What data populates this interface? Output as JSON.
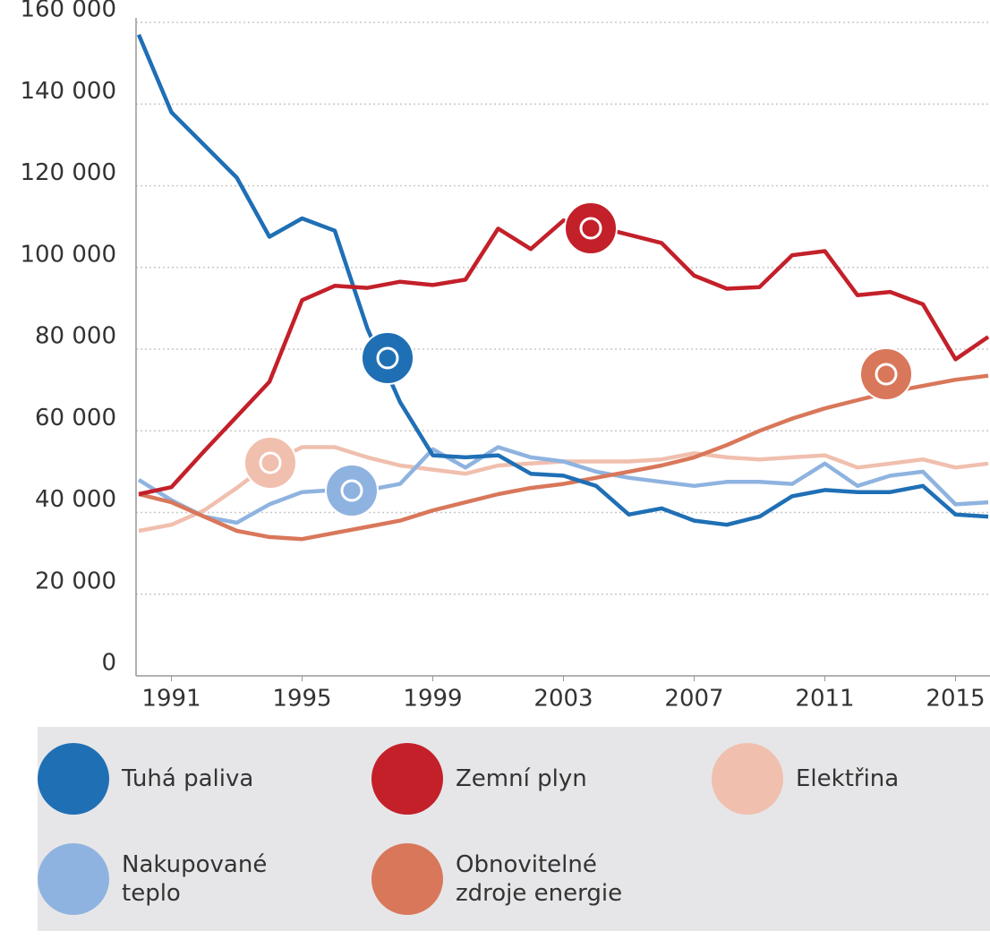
{
  "chart_data": {
    "type": "line",
    "x": [
      1990,
      1991,
      1992,
      1993,
      1994,
      1995,
      1996,
      1997,
      1998,
      1999,
      2000,
      2001,
      2002,
      2003,
      2004,
      2005,
      2006,
      2007,
      2008,
      2009,
      2010,
      2011,
      2012,
      2013,
      2014,
      2015,
      2016
    ],
    "xlim": [
      1990,
      2016
    ],
    "xticks": [
      1991,
      1995,
      1999,
      2003,
      2007,
      2011,
      2015
    ],
    "ylim": [
      0,
      160000
    ],
    "yticks": [
      0,
      {
        "value": 20000,
        "label": "20 000"
      },
      {
        "value": 40000,
        "label": "40 000"
      },
      {
        "value": 60000,
        "label": "60 000"
      },
      {
        "value": 80000,
        "label": "80 000"
      },
      {
        "value": 100000,
        "label": "100 000"
      },
      {
        "value": 120000,
        "label": "120 000"
      },
      {
        "value": 140000,
        "label": "140 000"
      },
      {
        "value": 160000,
        "label": "160 000"
      }
    ],
    "grid": true,
    "series": [
      {
        "name": "Tuhá paliva",
        "color": "#1f6fb5",
        "values": [
          157000,
          138000,
          130000,
          122000,
          107500,
          112000,
          109000,
          85000,
          67000,
          54000,
          53500,
          54000,
          49500,
          49000,
          46500,
          39500,
          41000,
          38000,
          37000,
          39000,
          44000,
          45500,
          45000,
          45000,
          46500,
          39500,
          39000
        ]
      },
      {
        "name": "Zemní plyn",
        "color": "#c3202a",
        "values": [
          44500,
          46200,
          55000,
          63500,
          72000,
          92000,
          95500,
          95000,
          96500,
          95700,
          97000,
          109500,
          104500,
          111500,
          110000,
          108000,
          106000,
          98000,
          94800,
          95200,
          103000,
          104000,
          93200,
          94000,
          91000,
          77500,
          83000
        ]
      },
      {
        "name": "Elektřina",
        "color": "#f0bfae",
        "values": [
          35500,
          37000,
          40500,
          46000,
          52000,
          56000,
          56000,
          53500,
          51500,
          50500,
          49500,
          51500,
          52000,
          52500,
          52500,
          52500,
          53000,
          54500,
          53500,
          53000,
          53500,
          54000,
          51000,
          52000,
          53000,
          51000,
          52000
        ]
      },
      {
        "name": "Nakupované teplo",
        "color": "#8fb3e0",
        "values": [
          48000,
          43000,
          39000,
          37500,
          42000,
          45000,
          45500,
          45500,
          47000,
          55500,
          51000,
          56000,
          53500,
          52500,
          50000,
          48500,
          47500,
          46500,
          47500,
          47500,
          47000,
          52000,
          46500,
          49000,
          50000,
          42000,
          42500
        ]
      },
      {
        "name": "Obnovitelné zdroje energie",
        "color": "#d9775a",
        "values": [
          44500,
          42500,
          39000,
          35500,
          34000,
          33500,
          35000,
          36500,
          38000,
          40500,
          42500,
          44500,
          46000,
          47000,
          48500,
          50000,
          51500,
          53500,
          56500,
          60000,
          63000,
          65500,
          67500,
          69500,
          71000,
          72500,
          73500
        ]
      }
    ]
  }
}
